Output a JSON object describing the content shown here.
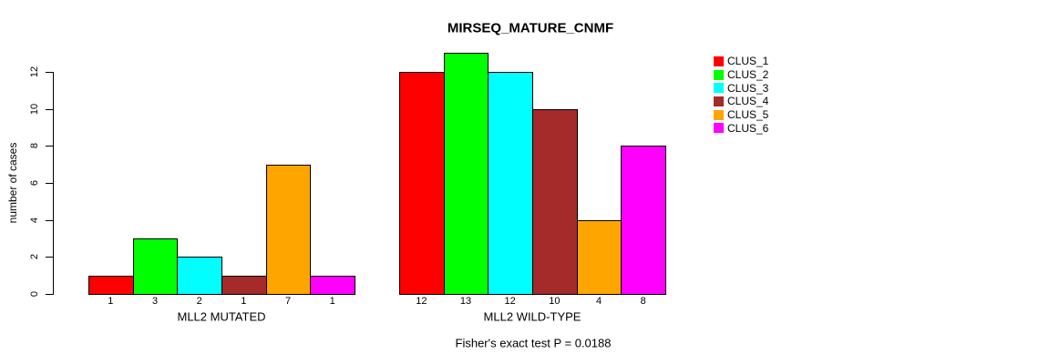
{
  "chart_data": {
    "type": "bar",
    "title": "MIRSEQ_MATURE_CNMF",
    "ylabel": "number of cases",
    "caption": "Fisher's exact test P = 0.0188",
    "categories": [
      "MLL2 MUTATED",
      "MLL2 WILD-TYPE"
    ],
    "series": [
      {
        "name": "CLUS_1",
        "color": "#FF0000",
        "values": [
          1,
          12
        ]
      },
      {
        "name": "CLUS_2",
        "color": "#00FF00",
        "values": [
          3,
          13
        ]
      },
      {
        "name": "CLUS_3",
        "color": "#00FFFF",
        "values": [
          2,
          12
        ]
      },
      {
        "name": "CLUS_4",
        "color": "#A52A2A",
        "values": [
          1,
          10
        ]
      },
      {
        "name": "CLUS_5",
        "color": "#FFA500",
        "values": [
          7,
          4
        ]
      },
      {
        "name": "CLUS_6",
        "color": "#FF00FF",
        "values": [
          1,
          8
        ]
      }
    ],
    "bar_value_labels": [
      [
        "1",
        "3",
        "2",
        "1",
        "7",
        "1"
      ],
      [
        "12",
        "13",
        "12",
        "10",
        "4",
        "8"
      ]
    ],
    "yticks": [
      0,
      2,
      4,
      6,
      8,
      10,
      12
    ],
    "ylim": [
      0,
      13
    ],
    "grid": false,
    "legend_position": "top-right",
    "axis_color": "#000000",
    "bar_border_color": "#000000",
    "background_color": "#FFFFFF"
  }
}
